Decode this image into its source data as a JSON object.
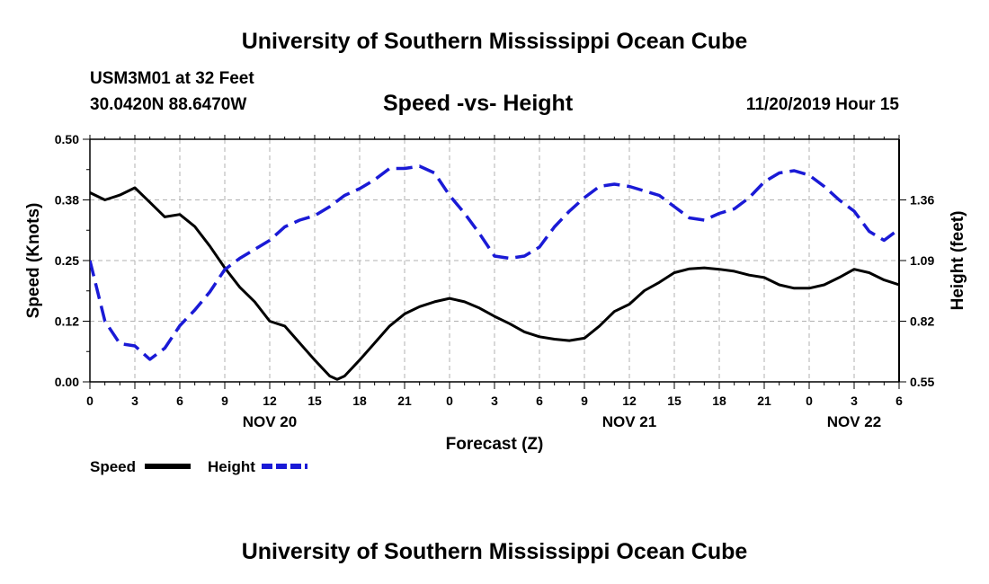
{
  "header": {
    "title": "University of Southern Mississippi Ocean Cube",
    "station": "USM3M01 at 32 Feet",
    "coordinates": "30.0420N 88.6470W",
    "plot_title": "Speed -vs- Height",
    "datetime": "11/20/2019 Hour 15"
  },
  "footer": {
    "title": "University of Southern Mississippi Ocean Cube"
  },
  "chart_data": {
    "type": "line",
    "title": "Speed -vs- Height",
    "xlabel": "Forecast (Z)",
    "ylabel": "Speed (Knots)",
    "y2label": "Height (feet)",
    "xlim": [
      0,
      54
    ],
    "ylim": [
      0,
      0.5
    ],
    "y2lim": [
      0.55,
      1.63
    ],
    "grid": true,
    "x_ticks": [
      0,
      3,
      6,
      9,
      12,
      15,
      18,
      21,
      24,
      27,
      30,
      33,
      36,
      39,
      42,
      45,
      48,
      51,
      54
    ],
    "x_tick_labels": [
      "0",
      "3",
      "6",
      "9",
      "12",
      "15",
      "18",
      "21",
      "0",
      "3",
      "6",
      "9",
      "12",
      "15",
      "18",
      "21",
      "0",
      "3",
      "6"
    ],
    "y_ticks": [
      0,
      0.125,
      0.25,
      0.375,
      0.5
    ],
    "y_tick_labels": [
      "0.00",
      "0.12",
      "0.25",
      "0.38",
      "0.50"
    ],
    "y2_ticks": [
      0.55,
      0.82,
      1.09,
      1.36
    ],
    "y2_tick_labels": [
      "0.55",
      "0.82",
      "1.09",
      "1.36"
    ],
    "day_labels": [
      {
        "x": 12,
        "label": "NOV 20"
      },
      {
        "x": 36,
        "label": "NOV 21"
      },
      {
        "x": 51,
        "label": "NOV 22"
      }
    ],
    "legend": [
      "Speed",
      "Height"
    ],
    "series": [
      {
        "name": "Speed",
        "axis": "left",
        "color": "#000000",
        "dash": "solid",
        "x": [
          0,
          1,
          2,
          3,
          4,
          5,
          6,
          7,
          8,
          9,
          10,
          11,
          12,
          13,
          14,
          15,
          16,
          16.5,
          17,
          18,
          19,
          20,
          21,
          22,
          23,
          24,
          25,
          26,
          27,
          28,
          29,
          30,
          31,
          32,
          33,
          34,
          35,
          36,
          37,
          38,
          39,
          40,
          41,
          42,
          43,
          44,
          45,
          46,
          47,
          48,
          49,
          50,
          51,
          52,
          53,
          54
        ],
        "values": [
          0.39,
          0.375,
          0.385,
          0.4,
          0.37,
          0.34,
          0.345,
          0.32,
          0.28,
          0.235,
          0.195,
          0.165,
          0.125,
          0.115,
          0.08,
          0.045,
          0.012,
          0.005,
          0.012,
          0.045,
          0.08,
          0.115,
          0.14,
          0.155,
          0.165,
          0.172,
          0.165,
          0.152,
          0.135,
          0.12,
          0.103,
          0.093,
          0.088,
          0.085,
          0.09,
          0.115,
          0.145,
          0.16,
          0.188,
          0.205,
          0.225,
          0.233,
          0.235,
          0.232,
          0.228,
          0.22,
          0.215,
          0.2,
          0.193,
          0.193,
          0.2,
          0.215,
          0.232,
          0.225,
          0.21,
          0.2
        ]
      },
      {
        "name": "Height",
        "axis": "right",
        "color": "#1a1ad6",
        "dash": "dashed",
        "x": [
          0,
          1,
          2,
          3,
          4,
          5,
          6,
          7,
          8,
          9,
          10,
          11,
          12,
          13,
          14,
          15,
          16,
          17,
          18,
          19,
          20,
          21,
          22,
          23,
          24,
          25,
          26,
          27,
          28,
          29,
          30,
          31,
          32,
          33,
          34,
          35,
          36,
          37,
          38,
          39,
          40,
          41,
          42,
          43,
          44,
          45,
          46,
          47,
          48,
          49,
          50,
          51,
          52,
          53,
          54
        ],
        "values": [
          1.09,
          0.82,
          0.72,
          0.71,
          0.65,
          0.7,
          0.8,
          0.87,
          0.95,
          1.05,
          1.1,
          1.14,
          1.18,
          1.24,
          1.27,
          1.29,
          1.33,
          1.38,
          1.41,
          1.45,
          1.5,
          1.5,
          1.51,
          1.48,
          1.38,
          1.3,
          1.21,
          1.11,
          1.1,
          1.11,
          1.15,
          1.24,
          1.31,
          1.37,
          1.42,
          1.43,
          1.42,
          1.4,
          1.38,
          1.33,
          1.28,
          1.27,
          1.3,
          1.32,
          1.37,
          1.44,
          1.48,
          1.49,
          1.47,
          1.42,
          1.36,
          1.31,
          1.22,
          1.18,
          1.23
        ]
      }
    ]
  }
}
